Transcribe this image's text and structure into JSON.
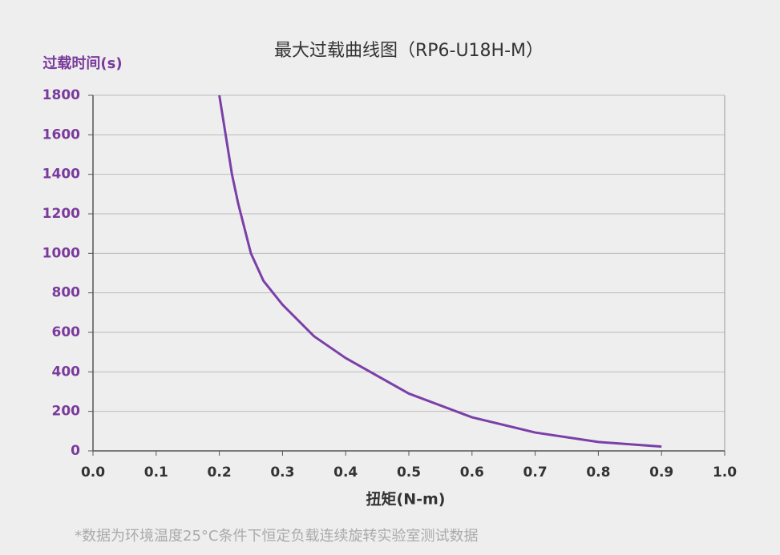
{
  "chart_data": {
    "type": "line",
    "title": "最大过载曲线图（RP6-U18H-M）",
    "y_label": "过载时间(s)",
    "x_label": "扭矩(N-m)",
    "footnote": "*数据为环境温度25°C条件下恒定负载连续旋转实验室测试数据",
    "x": [
      0.2,
      0.21,
      0.22,
      0.23,
      0.25,
      0.27,
      0.3,
      0.35,
      0.4,
      0.5,
      0.6,
      0.7,
      0.8,
      0.9
    ],
    "values": [
      1800,
      1600,
      1400,
      1250,
      1000,
      860,
      740,
      580,
      470,
      290,
      170,
      93,
      45,
      22
    ],
    "color": "#7b3fa8",
    "xlim": [
      0,
      1
    ],
    "xticks": [
      {
        "value": 0,
        "label": "0.0"
      },
      0.1,
      0.2,
      0.3,
      0.4,
      0.5,
      0.6,
      0.7,
      0.8,
      0.9,
      {
        "value": 1,
        "label": "1.0"
      }
    ],
    "ylim": [
      0,
      1800
    ],
    "yticks": [
      0,
      200,
      400,
      600,
      800,
      1000,
      1200,
      1400,
      1600,
      1800
    ],
    "grid": true
  }
}
